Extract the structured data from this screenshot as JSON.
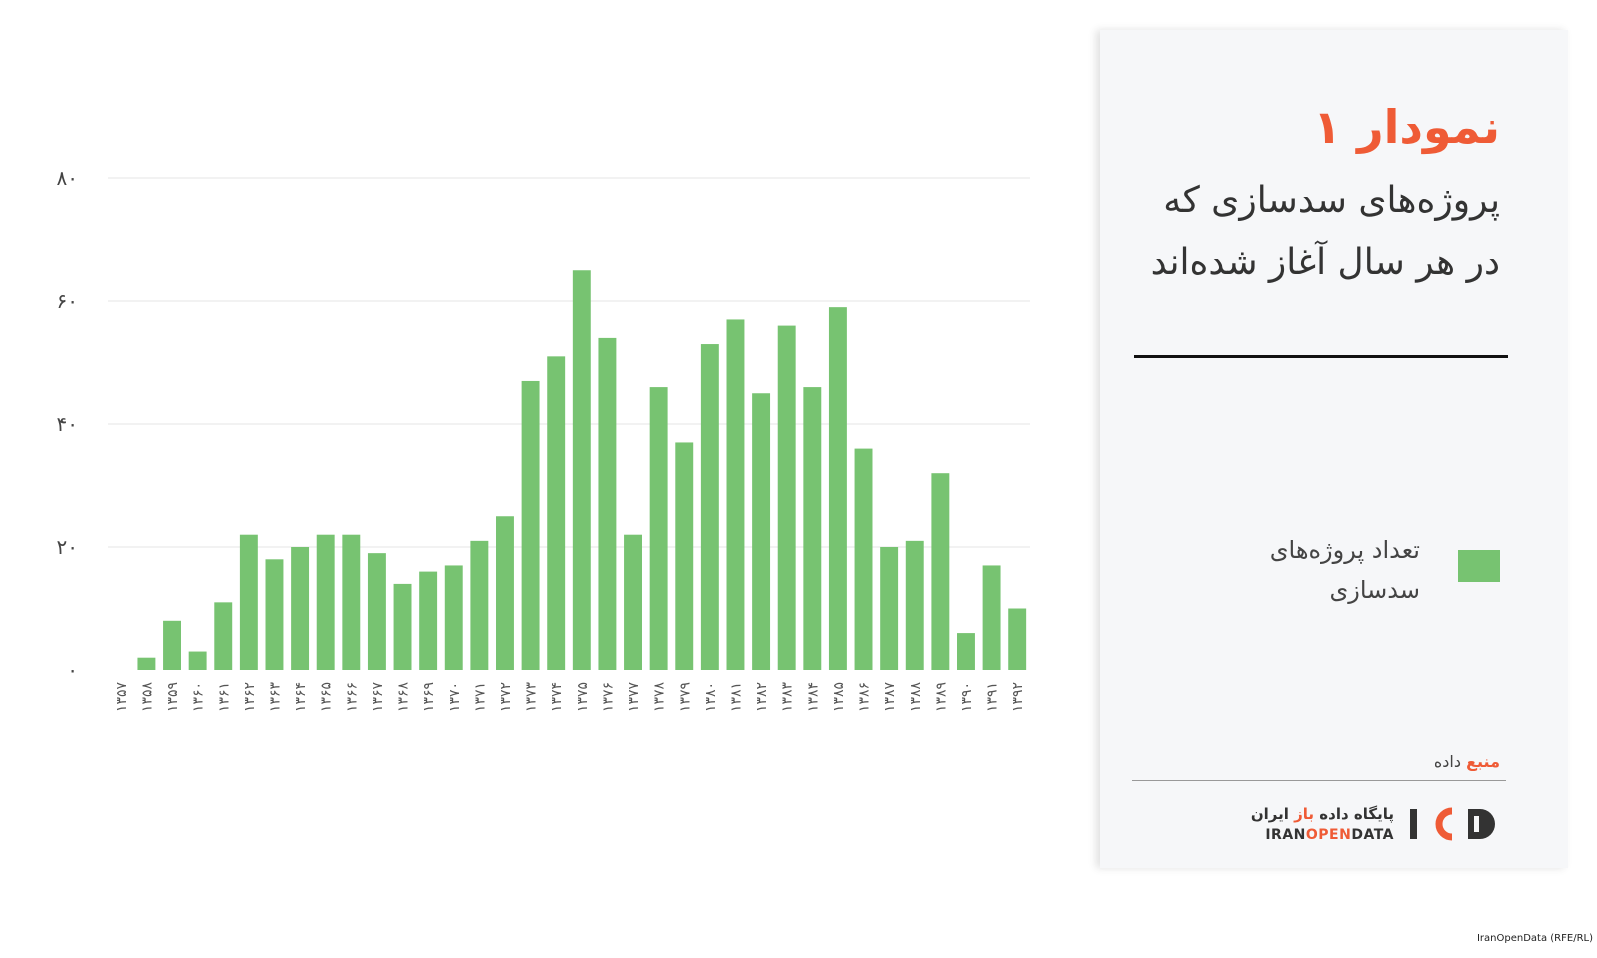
{
  "panel": {
    "title": "نمودار ۱",
    "subtitle": "پروژه‌های سدسازی که در هر سال آغاز شده‌اند",
    "legend_label": "تعداد پروژه‌های سدسازی",
    "source_prefix": "منبع",
    "source_suffix": "داده",
    "brand_fa_pre": "پایگاه داده",
    "brand_fa_accent": "باز",
    "brand_fa_post": "ایران",
    "brand_en_pre": "IRAN",
    "brand_en_accent": "OPEN",
    "brand_en_post": "DATA",
    "logo_text": "IOD"
  },
  "credit": "IranOpenData (RFE/RL)",
  "colors": {
    "bar": "#77c371",
    "accent": "#ef5b36"
  },
  "chart_data": {
    "type": "bar",
    "title": "نمودار ۱",
    "subtitle": "پروژه‌های سدسازی که در هر سال آغاز شده‌اند",
    "ylim": [
      0,
      80
    ],
    "y_ticks": [
      0,
      20,
      40,
      60,
      80
    ],
    "y_tick_labels": [
      "۰",
      "۲۰",
      "۴۰",
      "۶۰",
      "۸۰"
    ],
    "grid": true,
    "legend": "right",
    "categories": [
      "۱۳۵۷",
      "۱۳۵۸",
      "۱۳۵۹",
      "۱۳۶۰",
      "۱۳۶۱",
      "۱۳۶۲",
      "۱۳۶۳",
      "۱۳۶۴",
      "۱۳۶۵",
      "۱۳۶۶",
      "۱۳۶۷",
      "۱۳۶۸",
      "۱۳۶۹",
      "۱۳۷۰",
      "۱۳۷۱",
      "۱۳۷۲",
      "۱۳۷۳",
      "۱۳۷۴",
      "۱۳۷۵",
      "۱۳۷۶",
      "۱۳۷۷",
      "۱۳۷۸",
      "۱۳۷۹",
      "۱۳۸۰",
      "۱۳۸۱",
      "۱۳۸۲",
      "۱۳۸۳",
      "۱۳۸۴",
      "۱۳۸۵",
      "۱۳۸۶",
      "۱۳۸۷",
      "۱۳۸۸",
      "۱۳۸۹",
      "۱۳۹۰",
      "۱۳۹۱",
      "۱۳۹۲"
    ],
    "series": [
      {
        "name": "تعداد پروژه‌های سدسازی",
        "values": [
          0,
          2,
          8,
          3,
          11,
          22,
          18,
          20,
          22,
          22,
          19,
          14,
          16,
          17,
          21,
          25,
          47,
          51,
          65,
          54,
          22,
          46,
          37,
          53,
          57,
          45,
          56,
          46,
          59,
          36,
          20,
          21,
          32,
          6,
          17,
          10
        ]
      }
    ]
  }
}
